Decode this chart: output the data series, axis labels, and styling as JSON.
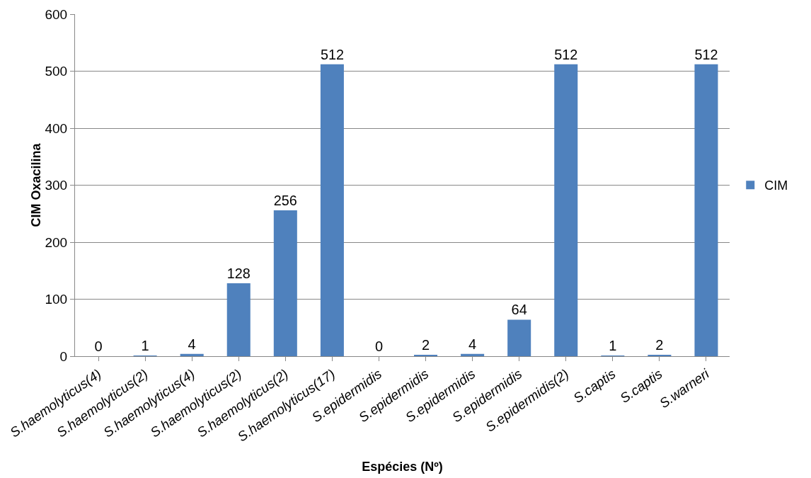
{
  "chart_data": {
    "type": "bar",
    "xlabel": "Espécies (Nº)",
    "ylabel": "CIM Oxacilina",
    "categories": [
      "S.haemolyticus(4)",
      "S.haemolyticus(2)",
      "S.haemolyticus(4)",
      "S.haemolyticus(2)",
      "S.haemolyticus(2)",
      "S.haemolyticus(17)",
      "S.epidermidis",
      "S.epidermidis",
      "S.epidermidis",
      "S.epidermidis",
      "S.epidermidis(2)",
      "S.captis",
      "S.captis",
      "S.warneri"
    ],
    "series": [
      {
        "name": "CIM",
        "color": "#4f81bd",
        "values": [
          0,
          1,
          4,
          128,
          256,
          512,
          0,
          2,
          4,
          64,
          512,
          1,
          2,
          512
        ]
      }
    ],
    "data_labels": true,
    "ylim": [
      0,
      600
    ],
    "yticks": [
      0,
      100,
      200,
      300,
      400,
      500,
      600
    ],
    "grid": "y",
    "legend": "right"
  }
}
